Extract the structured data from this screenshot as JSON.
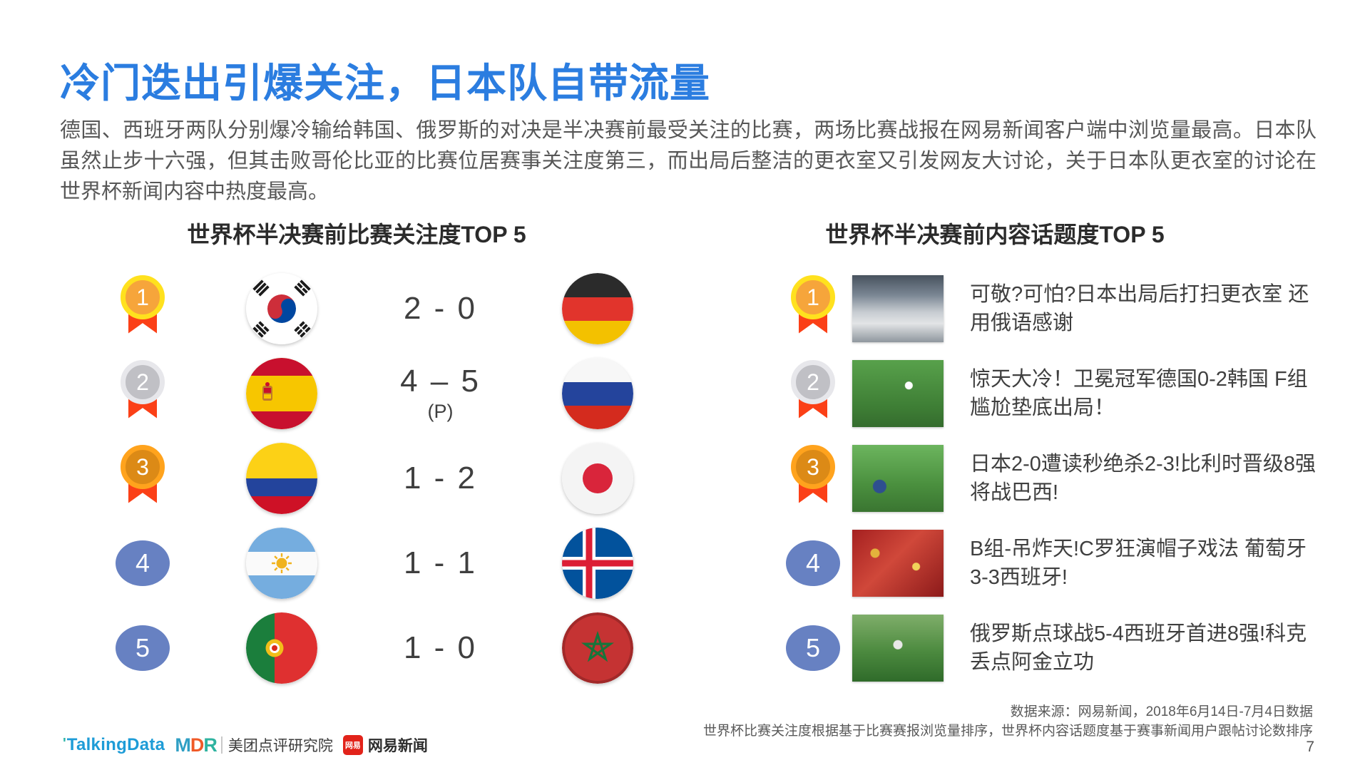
{
  "page": {
    "title": "冷门迭出引爆关注，日本队自带流量",
    "body": "德国、西班牙两队分别爆冷输给韩国、俄罗斯的对决是半决赛前最受关注的比赛，两场比赛战报在网易新闻客户端中浏览量最高。日本队虽然止步十六强，但其击败哥伦比亚的比赛位居赛事关注度第三，而出局后整洁的更衣室又引发网友大讨论，关于日本队更衣室的讨论在世界杯新闻内容中热度最高。",
    "page_number": "7"
  },
  "colors": {
    "title_blue": "#2B7DE0",
    "rank_blue": "#6781C2",
    "ribbon_red": "#FB4017",
    "medal_gold": "#F6A53B",
    "medal_silver": "#C0C0C5",
    "medal_bronze": "#DC8A16"
  },
  "left_panel": {
    "title": "世界杯半决赛前比赛关注度TOP 5",
    "rows": [
      {
        "rank": "1",
        "medal": "gold",
        "home_flag": "south-korea",
        "score": "2 - 0",
        "note": "",
        "away_flag": "germany"
      },
      {
        "rank": "2",
        "medal": "silver",
        "home_flag": "spain",
        "score": "4 – 5",
        "note": "(P)",
        "away_flag": "russia"
      },
      {
        "rank": "3",
        "medal": "bronze",
        "home_flag": "colombia",
        "score": "1 - 2",
        "note": "",
        "away_flag": "japan"
      },
      {
        "rank": "4",
        "medal": "blue",
        "home_flag": "argentina",
        "score": "1 - 1",
        "note": "",
        "away_flag": "iceland"
      },
      {
        "rank": "5",
        "medal": "blue",
        "home_flag": "portugal",
        "score": "1 - 0",
        "note": "",
        "away_flag": "morocco"
      }
    ]
  },
  "right_panel": {
    "title": "世界杯半决赛前内容话题度TOP 5",
    "rows": [
      {
        "rank": "1",
        "medal": "gold",
        "thumb": "locker-room",
        "text": "可敬?可怕?日本出局后打扫更衣室 还用俄语感谢"
      },
      {
        "rank": "2",
        "medal": "silver",
        "thumb": "germany-korea-match",
        "text": "惊天大冷！卫冕冠军德国0-2韩国 F组尴尬垫底出局！"
      },
      {
        "rank": "3",
        "medal": "bronze",
        "thumb": "japan-belgium-match",
        "text": "日本2-0遭读秒绝杀2-3!比利时晋级8强将战巴西!"
      },
      {
        "rank": "4",
        "medal": "blue",
        "thumb": "portugal-fans",
        "text": "B组-吊炸天!C罗狂演帽子戏法 葡萄牙3-3西班牙!"
      },
      {
        "rank": "5",
        "medal": "blue",
        "thumb": "russia-celebration",
        "text": "俄罗斯点球战5-4西班牙首进8强!科克丢点阿金立功"
      }
    ]
  },
  "footer": {
    "source_line1": "数据来源：网易新闻，2018年6月14日-7月4日数据",
    "source_line2": "世界杯比赛关注度根据基于比赛赛报浏览量排序，世界杯内容话题度基于赛事新闻用户跟帖讨论数排序",
    "logos": {
      "talkingdata_quote": "'",
      "talkingdata": "TalkingData",
      "mdr": "MDR",
      "mdr_label": "美团点评研究院",
      "netease_icon": "网易",
      "netease_label": "网易新闻"
    }
  }
}
